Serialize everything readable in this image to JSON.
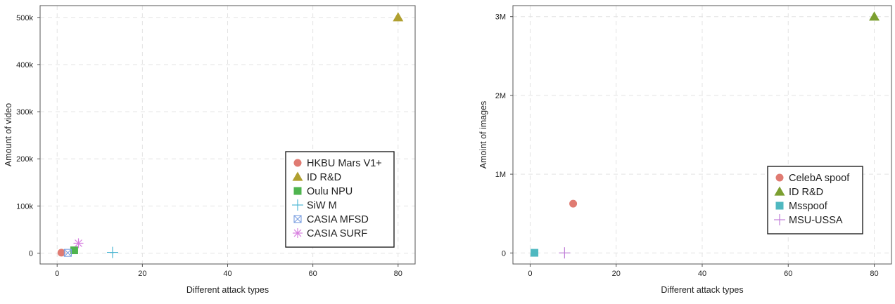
{
  "chart_data": [
    {
      "type": "scatter",
      "xlabel": "Different attack types",
      "ylabel": "Amount of video",
      "xlim": [
        -4,
        84
      ],
      "ylim": [
        -23000,
        525000
      ],
      "xticks": [
        0,
        20,
        40,
        60,
        80
      ],
      "xtick_labels": [
        "0",
        "20",
        "40",
        "60",
        "80"
      ],
      "yticks": [
        0,
        100000,
        200000,
        300000,
        400000,
        500000
      ],
      "ytick_labels": [
        "0",
        "100k",
        "200k",
        "300k",
        "400k",
        "500k"
      ],
      "grid": true,
      "legend_position": "bottom-right",
      "series": [
        {
          "name": "HKBU Mars V1+",
          "marker": "circle",
          "color": "#e07b72",
          "points": [
            {
              "x": 1,
              "y": 1000
            }
          ]
        },
        {
          "name": "ID R&D",
          "marker": "triangle",
          "color": "#b0a030",
          "points": [
            {
              "x": 80,
              "y": 500000
            }
          ]
        },
        {
          "name": "Oulu NPU",
          "marker": "square",
          "color": "#4fb44f",
          "points": [
            {
              "x": 4,
              "y": 6000
            }
          ]
        },
        {
          "name": "SiW M",
          "marker": "plus",
          "color": "#4fb8d4",
          "points": [
            {
              "x": 13,
              "y": 1500
            }
          ]
        },
        {
          "name": "CASIA MFSD",
          "marker": "boxcross",
          "color": "#7a9ee0",
          "points": [
            {
              "x": 2.5,
              "y": 600
            }
          ]
        },
        {
          "name": "CASIA SURF",
          "marker": "asterisk",
          "color": "#d77ee0",
          "points": [
            {
              "x": 5,
              "y": 21000
            }
          ]
        }
      ]
    },
    {
      "type": "scatter",
      "xlabel": "Different attack types",
      "ylabel": "Amoint of images",
      "xlim": [
        -4,
        84
      ],
      "ylim": [
        -140000,
        3140000
      ],
      "xticks": [
        0,
        20,
        40,
        60,
        80
      ],
      "xtick_labels": [
        "0",
        "20",
        "40",
        "60",
        "80"
      ],
      "yticks": [
        0,
        1000000,
        2000000,
        3000000
      ],
      "ytick_labels": [
        "0",
        "1M",
        "2M",
        "3M"
      ],
      "grid": true,
      "legend_position": "bottom-right",
      "series": [
        {
          "name": "CelebA spoof",
          "marker": "circle",
          "color": "#e07b72",
          "points": [
            {
              "x": 10,
              "y": 625000
            }
          ]
        },
        {
          "name": "ID R&D",
          "marker": "triangle",
          "color": "#7c9f30",
          "points": [
            {
              "x": 80,
              "y": 3000000
            }
          ]
        },
        {
          "name": "Msspoof",
          "marker": "square",
          "color": "#4fb8c0",
          "points": [
            {
              "x": 1,
              "y": 2000
            }
          ]
        },
        {
          "name": "MSU-USSA",
          "marker": "plus",
          "color": "#c07ed8",
          "points": [
            {
              "x": 8,
              "y": 1000
            }
          ]
        }
      ]
    }
  ]
}
